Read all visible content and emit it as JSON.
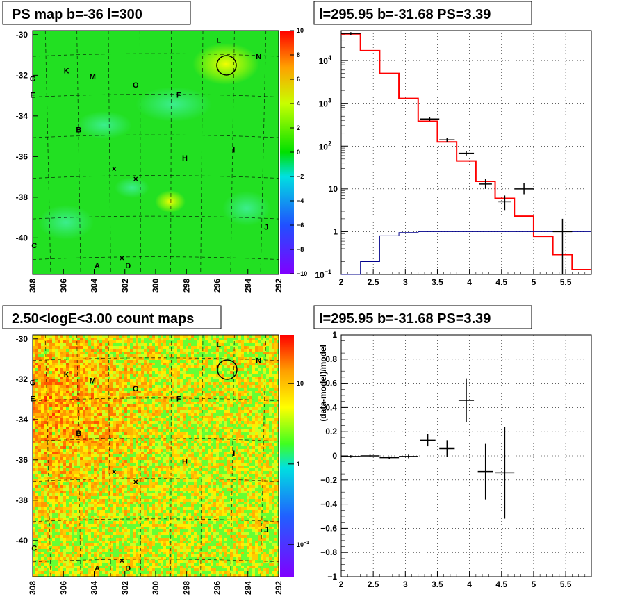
{
  "chart_data": [
    {
      "type": "heatmap",
      "title": "PS map b=-36 l=300",
      "x_ticks": [
        "308",
        "306",
        "304",
        "302",
        "300",
        "298",
        "296",
        "294",
        "292"
      ],
      "y_ticks": [
        "-30",
        "-32",
        "-34",
        "-36",
        "-38",
        "-40"
      ],
      "xlim": [
        308,
        292
      ],
      "ylim": [
        -41.8,
        -29.8
      ],
      "colorbar": {
        "scale": "linear",
        "ticks": [
          "10",
          "8",
          "6",
          "4",
          "2",
          "0",
          "−2",
          "−4",
          "−6",
          "−8",
          "−10"
        ],
        "min": -10,
        "max": 10
      },
      "sources": [
        {
          "label": "L",
          "l": 295.9,
          "b": -30.4
        },
        {
          "label": "N",
          "l": 293.3,
          "b": -31.2
        },
        {
          "label": "G",
          "l": 308.0,
          "b": -32.3
        },
        {
          "label": "K",
          "l": 305.8,
          "b": -31.9
        },
        {
          "label": "M",
          "l": 304.1,
          "b": -32.2
        },
        {
          "label": "O",
          "l": 301.3,
          "b": -32.6
        },
        {
          "label": "E",
          "l": 308.0,
          "b": -33.1
        },
        {
          "label": "F",
          "l": 298.5,
          "b": -33.1
        },
        {
          "label": "B",
          "l": 305.0,
          "b": -34.8
        },
        {
          "label": "I",
          "l": 294.9,
          "b": -35.8
        },
        {
          "label": "H",
          "l": 298.1,
          "b": -36.2
        },
        {
          "label": "J",
          "l": 292.8,
          "b": -39.6
        },
        {
          "label": "C",
          "l": 307.9,
          "b": -40.5
        },
        {
          "label": "A",
          "l": 303.8,
          "b": -41.5
        },
        {
          "label": "D",
          "l": 301.8,
          "b": -41.5
        }
      ],
      "markers": [
        {
          "l": 302.7,
          "b": -36.6
        },
        {
          "l": 301.3,
          "b": -37.1
        },
        {
          "l": 302.2,
          "b": -41.0
        }
      ],
      "circle": {
        "l": 295.37,
        "b": -31.55
      }
    },
    {
      "type": "line",
      "title": "l=295.95 b=-31.68 PS=3.39",
      "x_ticks": [
        "2",
        "2.5",
        "3",
        "3.5",
        "4",
        "4.5",
        "5",
        "5.5"
      ],
      "y_ticks": [
        "10",
        "1"
      ],
      "xlim": [
        2,
        5.9
      ],
      "ylim_log10": [
        -1,
        4.7
      ],
      "yscale": "log",
      "grid": true,
      "series": [
        {
          "color": "#ff0000",
          "steps": [
            [
              2.0,
              2.3,
              42000
            ],
            [
              2.3,
              2.6,
              17000
            ],
            [
              2.6,
              2.9,
              5000
            ],
            [
              2.9,
              3.2,
              1300
            ],
            [
              3.2,
              3.5,
              380
            ],
            [
              3.5,
              3.8,
              125
            ],
            [
              3.8,
              4.1,
              45
            ],
            [
              4.1,
              4.4,
              15
            ],
            [
              4.4,
              4.7,
              6
            ],
            [
              4.7,
              5.0,
              2.3
            ],
            [
              5.0,
              5.3,
              0.78
            ],
            [
              5.3,
              5.6,
              0.29
            ],
            [
              5.6,
              5.9,
              0.13
            ]
          ]
        },
        {
          "color": "#00008b",
          "steps": [
            [
              2.0,
              2.3,
              0.06
            ],
            [
              2.3,
              2.6,
              0.2
            ],
            [
              2.6,
              2.9,
              0.8
            ],
            [
              2.9,
              3.2,
              0.95
            ],
            [
              3.2,
              5.9,
              1.0
            ]
          ]
        }
      ],
      "data_points": [
        {
          "x": 2.15,
          "xerr": 0.15,
          "y": 43000,
          "ylo": 40000,
          "yhi": 46000
        },
        {
          "x": 3.38,
          "xerr": 0.15,
          "y": 430,
          "ylo": 390,
          "yhi": 470
        },
        {
          "x": 3.65,
          "xerr": 0.12,
          "y": 140,
          "ylo": 125,
          "yhi": 155
        },
        {
          "x": 3.95,
          "xerr": 0.12,
          "y": 68,
          "ylo": 60,
          "yhi": 76
        },
        {
          "x": 4.25,
          "xerr": 0.1,
          "y": 13,
          "ylo": 10,
          "yhi": 17
        },
        {
          "x": 4.55,
          "xerr": 0.1,
          "y": 5,
          "ylo": 3.2,
          "yhi": 7
        },
        {
          "x": 4.85,
          "xerr": 0.15,
          "y": 10,
          "ylo": 7.5,
          "yhi": 13.5
        },
        {
          "x": 5.45,
          "xerr": 0.15,
          "y": 1,
          "ylo": 0.1,
          "yhi": 2
        }
      ]
    },
    {
      "type": "heatmap",
      "title": "2.50<logE<3.00 count maps",
      "x_ticks": [
        "308",
        "306",
        "304",
        "302",
        "300",
        "298",
        "296",
        "294",
        "292"
      ],
      "y_ticks": [
        "-30",
        "-32",
        "-34",
        "-36",
        "-38",
        "-40"
      ],
      "xlim": [
        308,
        292
      ],
      "ylim": [
        -41.8,
        -29.8
      ],
      "colorbar": {
        "scale": "log",
        "ticks": [
          "10",
          "1",
          "10^-1"
        ],
        "min": 0.04,
        "max": 40
      }
    },
    {
      "type": "scatter",
      "title": "l=295.95 b=-31.68 PS=3.39",
      "ylabel": "(data-model)/model",
      "x_ticks": [
        "2",
        "2.5",
        "3",
        "3.5",
        "4",
        "4.5",
        "5",
        "5.5"
      ],
      "y_ticks": [
        "1",
        "0.8",
        "0.6",
        "0.4",
        "0.2",
        "0",
        "−0.2",
        "−0.4",
        "−0.6",
        "−0.8",
        "−1"
      ],
      "xlim": [
        2,
        5.9
      ],
      "ylim": [
        -1,
        1
      ],
      "grid": true,
      "points": [
        {
          "x": 2.15,
          "xerr": 0.15,
          "y": -0.005,
          "yerr": 0.01
        },
        {
          "x": 2.45,
          "xerr": 0.15,
          "y": 0.0,
          "yerr": 0.01
        },
        {
          "x": 2.75,
          "xerr": 0.15,
          "y": -0.015,
          "yerr": 0.01
        },
        {
          "x": 3.05,
          "xerr": 0.15,
          "y": -0.005,
          "yerr": 0.015
        },
        {
          "x": 3.35,
          "xerr": 0.12,
          "y": 0.13,
          "yerr": 0.05
        },
        {
          "x": 3.65,
          "xerr": 0.12,
          "y": 0.06,
          "yerr": 0.07
        },
        {
          "x": 3.95,
          "xerr": 0.12,
          "y": 0.46,
          "yerr": 0.18
        },
        {
          "x": 4.25,
          "xerr": 0.12,
          "y": -0.13,
          "yerr": 0.23
        },
        {
          "x": 4.55,
          "xerr": 0.15,
          "y": -0.14,
          "yerr": 0.38
        }
      ]
    }
  ]
}
